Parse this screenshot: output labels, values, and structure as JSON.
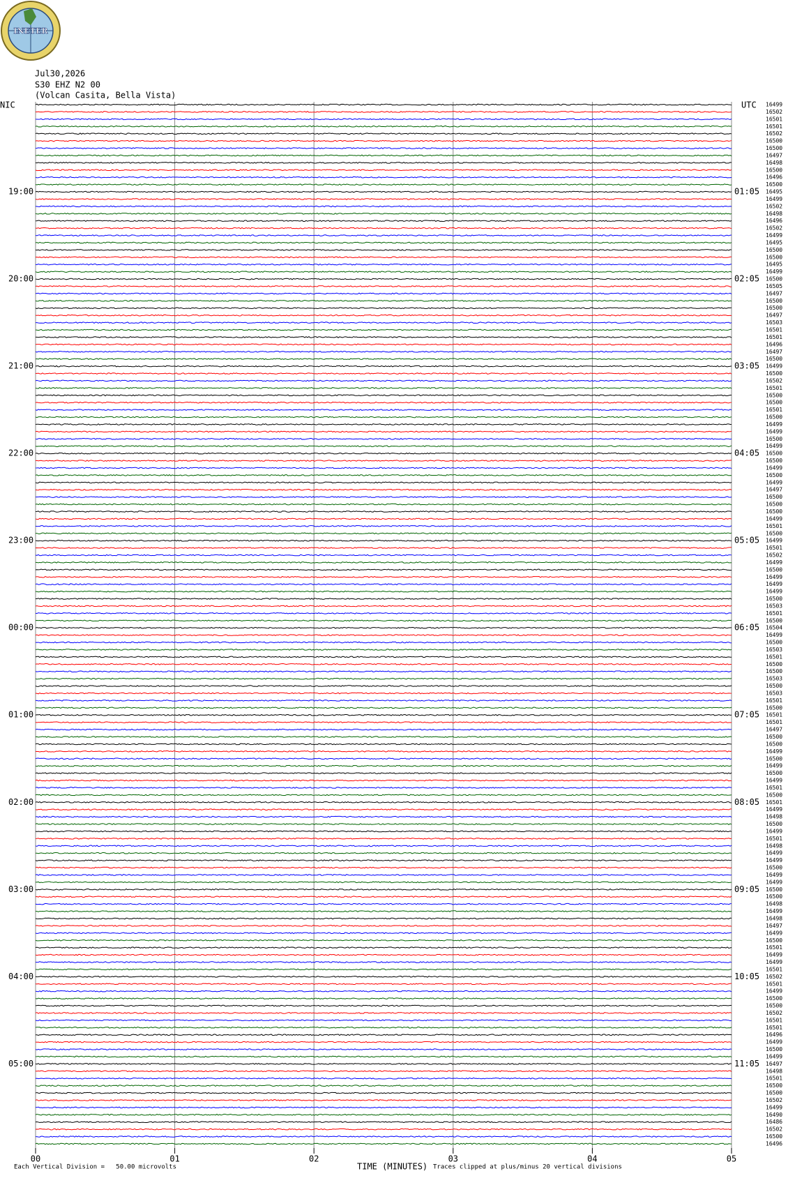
{
  "logo": "INETER",
  "chart_data": {
    "type": "helicorder",
    "date": "Jul30,2026",
    "station": "S30 EHZ N2 00",
    "location": "(Volcan Casita, Bella Vista)",
    "left_timezone": "NIC",
    "right_timezone": "UTC",
    "left_hours": [
      null,
      "19:00",
      "20:00",
      "21:00",
      "22:00",
      "23:00",
      "00:00",
      "01:00",
      "02:00",
      "03:00",
      "04:00",
      "05:00"
    ],
    "right_hours": [
      null,
      "01:05",
      "02:05",
      "03:05",
      "04:05",
      "05:05",
      "06:05",
      "07:05",
      "08:05",
      "09:05",
      "10:05",
      "11:05"
    ],
    "trace_values": [
      16499,
      16502,
      16501,
      16501,
      16502,
      16500,
      16500,
      16497,
      16498,
      16500,
      16496,
      16500,
      16495,
      16499,
      16502,
      16498,
      16496,
      16502,
      16499,
      16495,
      16500,
      16500,
      16495,
      16499,
      16500,
      16505,
      16497,
      16500,
      16500,
      16497,
      16503,
      16501,
      16501,
      16496,
      16497,
      16500,
      16499,
      16500,
      16502,
      16501,
      16500,
      16500,
      16501,
      16500,
      16499,
      16499,
      16500,
      16499,
      16500,
      16500,
      16499,
      16500,
      16499,
      16497,
      16500,
      16500,
      16500,
      16499,
      16501,
      16500,
      16499,
      16501,
      16502,
      16499,
      16500,
      16499,
      16499,
      16499,
      16500,
      16503,
      16501,
      16500,
      16504,
      16499,
      16500,
      16503,
      16501,
      16500,
      16500,
      16503,
      16500,
      16503,
      16501,
      16500,
      16501,
      16501,
      16497,
      16500,
      16500,
      16499,
      16500,
      16499,
      16500,
      16499,
      16501,
      16500,
      16501,
      16499,
      16498,
      16500,
      16499,
      16501,
      16498,
      16499,
      16499,
      16500,
      16499,
      16499,
      16500,
      16500,
      16498,
      16499,
      16498,
      16497,
      16499,
      16500,
      16501,
      16499,
      16499,
      16501,
      16502,
      16501,
      16499,
      16500,
      16500,
      16502,
      16501,
      16501,
      16496,
      16499,
      16500,
      16499,
      16497,
      16498,
      16501,
      16500,
      16500,
      16502,
      16499,
      16490,
      16486,
      16502,
      16500,
      16496
    ],
    "colors": [
      "#000000",
      "#ff0000",
      "#0000ff",
      "#006400"
    ],
    "xlim": [
      0,
      5
    ],
    "xticks": [
      {
        "value": 0,
        "label": "00"
      },
      {
        "value": 1,
        "label": "01"
      },
      {
        "value": 2,
        "label": "02"
      },
      {
        "value": 3,
        "label": "03"
      },
      {
        "value": 4,
        "label": "04"
      },
      {
        "value": 5,
        "label": "05"
      }
    ],
    "xlabel": "TIME (MINUTES)",
    "scale_note": "Each Vertical Division =   50.00 microvolts",
    "clip_note": "Traces clipped at plus/minus 20 vertical divisions"
  }
}
